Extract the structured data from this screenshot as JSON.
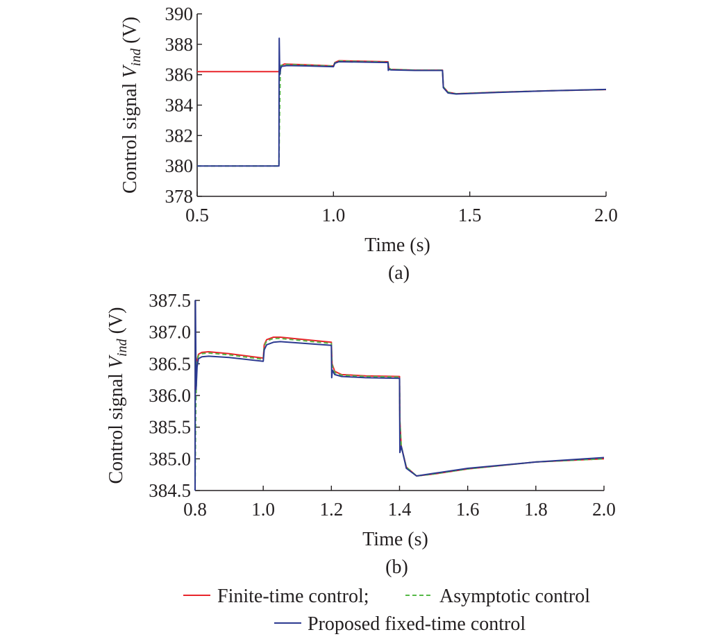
{
  "chart_data": [
    {
      "type": "line",
      "panel_label": "(a)",
      "xlabel": "Time (s)",
      "ylabel": {
        "text": "Control signal ",
        "var": "V",
        "sub": "ind",
        "unit": " (V)"
      },
      "xlim": [
        0.5,
        2.0
      ],
      "ylim": [
        378,
        390
      ],
      "xticks": [
        0.5,
        1.0,
        1.5,
        2.0
      ],
      "xtick_labels": [
        "0.5",
        "1.0",
        "1.5",
        "2.0"
      ],
      "yticks": [
        378,
        380,
        382,
        384,
        386,
        388,
        390
      ],
      "ytick_labels": [
        "378",
        "380",
        "382",
        "384",
        "386",
        "388",
        "390"
      ],
      "grid": false,
      "series": [
        {
          "name": "Finite-time control",
          "color": "#e8242a",
          "dash": "solid",
          "x": [
            0.5,
            0.8,
            0.803,
            0.807,
            0.82,
            0.9,
            1.0,
            1.005,
            1.02,
            1.2,
            1.203,
            1.21,
            1.3,
            1.4,
            1.403,
            1.42,
            1.45,
            1.6,
            1.8,
            2.0
          ],
          "y": [
            386.2,
            386.2,
            386.5,
            386.6,
            386.7,
            386.65,
            386.58,
            386.8,
            386.92,
            386.85,
            386.45,
            386.35,
            386.3,
            386.3,
            385.2,
            384.85,
            384.75,
            384.85,
            384.95,
            385.02
          ]
        },
        {
          "name": "Asymptotic control",
          "color": "#56b947",
          "dash": "dashed",
          "x": [
            0.5,
            0.8,
            0.802,
            0.805,
            0.807,
            0.82,
            0.9,
            1.0,
            1.005,
            1.02,
            1.2,
            1.203,
            1.21,
            1.3,
            1.4,
            1.403,
            1.42,
            1.45,
            1.6,
            1.8,
            2.0
          ],
          "y": [
            380.0,
            380.0,
            383.0,
            386.3,
            386.6,
            386.68,
            386.63,
            386.57,
            386.78,
            386.9,
            386.83,
            386.45,
            386.35,
            386.3,
            386.3,
            385.2,
            384.85,
            384.75,
            384.85,
            384.95,
            385.02
          ]
        },
        {
          "name": "Proposed fixed-time control",
          "color": "#2b3990",
          "dash": "solid",
          "x": [
            0.5,
            0.8,
            0.801,
            0.803,
            0.806,
            0.81,
            0.83,
            0.9,
            1.0,
            1.005,
            1.02,
            1.2,
            1.201,
            1.203,
            1.21,
            1.3,
            1.4,
            1.403,
            1.42,
            1.45,
            1.6,
            1.8,
            2.0
          ],
          "y": [
            380.0,
            380.0,
            388.4,
            386.0,
            386.4,
            386.55,
            386.6,
            386.58,
            386.53,
            386.75,
            386.85,
            386.8,
            386.28,
            386.35,
            386.32,
            386.28,
            386.28,
            385.15,
            384.8,
            384.73,
            384.83,
            384.95,
            385.03
          ]
        }
      ]
    },
    {
      "type": "line",
      "panel_label": "(b)",
      "xlabel": "Time (s)",
      "ylabel": {
        "text": "Control signal ",
        "var": "V",
        "sub": "ind",
        "unit": " (V)"
      },
      "xlim": [
        0.8,
        2.0
      ],
      "ylim": [
        384.5,
        387.5
      ],
      "xticks": [
        0.8,
        1.0,
        1.2,
        1.4,
        1.6,
        1.8,
        2.0
      ],
      "xtick_labels": [
        "0.8",
        "1.0",
        "1.2",
        "1.4",
        "1.6",
        "1.8",
        "2.0"
      ],
      "yticks": [
        384.5,
        385.0,
        385.5,
        386.0,
        386.5,
        387.0,
        387.5
      ],
      "ytick_labels": [
        "384.5",
        "385.0",
        "385.5",
        "386.0",
        "386.5",
        "387.0",
        "387.5"
      ],
      "grid": false,
      "series": [
        {
          "name": "Finite-time control",
          "color": "#e8242a",
          "dash": "solid",
          "x": [
            0.8,
            0.805,
            0.81,
            0.82,
            0.84,
            0.9,
            1.0,
            1.003,
            1.01,
            1.03,
            1.05,
            1.2,
            1.202,
            1.21,
            1.23,
            1.3,
            1.4,
            1.401,
            1.405,
            1.42,
            1.45,
            1.5,
            1.6,
            1.8,
            2.0
          ],
          "y": [
            386.1,
            386.55,
            386.65,
            386.68,
            386.69,
            386.66,
            386.59,
            386.8,
            386.88,
            386.92,
            386.92,
            386.84,
            386.5,
            386.38,
            386.33,
            386.31,
            386.3,
            385.6,
            385.2,
            384.87,
            384.73,
            384.76,
            384.84,
            384.95,
            385.0
          ]
        },
        {
          "name": "Asymptotic control",
          "color": "#56b947",
          "dash": "dashed",
          "x": [
            0.8,
            0.802,
            0.805,
            0.81,
            0.82,
            0.84,
            0.9,
            1.0,
            1.003,
            1.01,
            1.03,
            1.05,
            1.2,
            1.202,
            1.21,
            1.23,
            1.3,
            1.4,
            1.401,
            1.405,
            1.42,
            1.45,
            1.5,
            1.6,
            1.8,
            2.0
          ],
          "y": [
            384.5,
            385.8,
            386.5,
            386.63,
            386.66,
            386.67,
            386.64,
            386.57,
            386.78,
            386.86,
            386.9,
            386.9,
            386.82,
            386.48,
            386.36,
            386.32,
            386.3,
            386.29,
            385.6,
            385.2,
            384.87,
            384.73,
            384.76,
            384.84,
            384.95,
            385.0
          ]
        },
        {
          "name": "Proposed fixed-time control",
          "color": "#2b3990",
          "dash": "solid",
          "x": [
            0.8,
            0.801,
            0.803,
            0.806,
            0.81,
            0.82,
            0.84,
            0.9,
            1.0,
            1.003,
            1.01,
            1.03,
            1.05,
            1.2,
            1.201,
            1.203,
            1.21,
            1.23,
            1.3,
            1.4,
            1.401,
            1.405,
            1.42,
            1.45,
            1.5,
            1.6,
            1.8,
            2.0
          ],
          "y": [
            384.5,
            387.5,
            386.1,
            386.45,
            386.58,
            386.61,
            386.62,
            386.6,
            386.54,
            386.72,
            386.8,
            386.84,
            386.85,
            386.79,
            386.28,
            386.4,
            386.33,
            386.3,
            386.28,
            386.27,
            385.1,
            385.2,
            384.85,
            384.73,
            384.77,
            384.85,
            384.95,
            385.02
          ]
        }
      ]
    }
  ],
  "legend": {
    "row1_item1": "Finite-time control;",
    "row1_item2": "Asymptotic control",
    "row2_item1": "Proposed fixed-time control"
  }
}
